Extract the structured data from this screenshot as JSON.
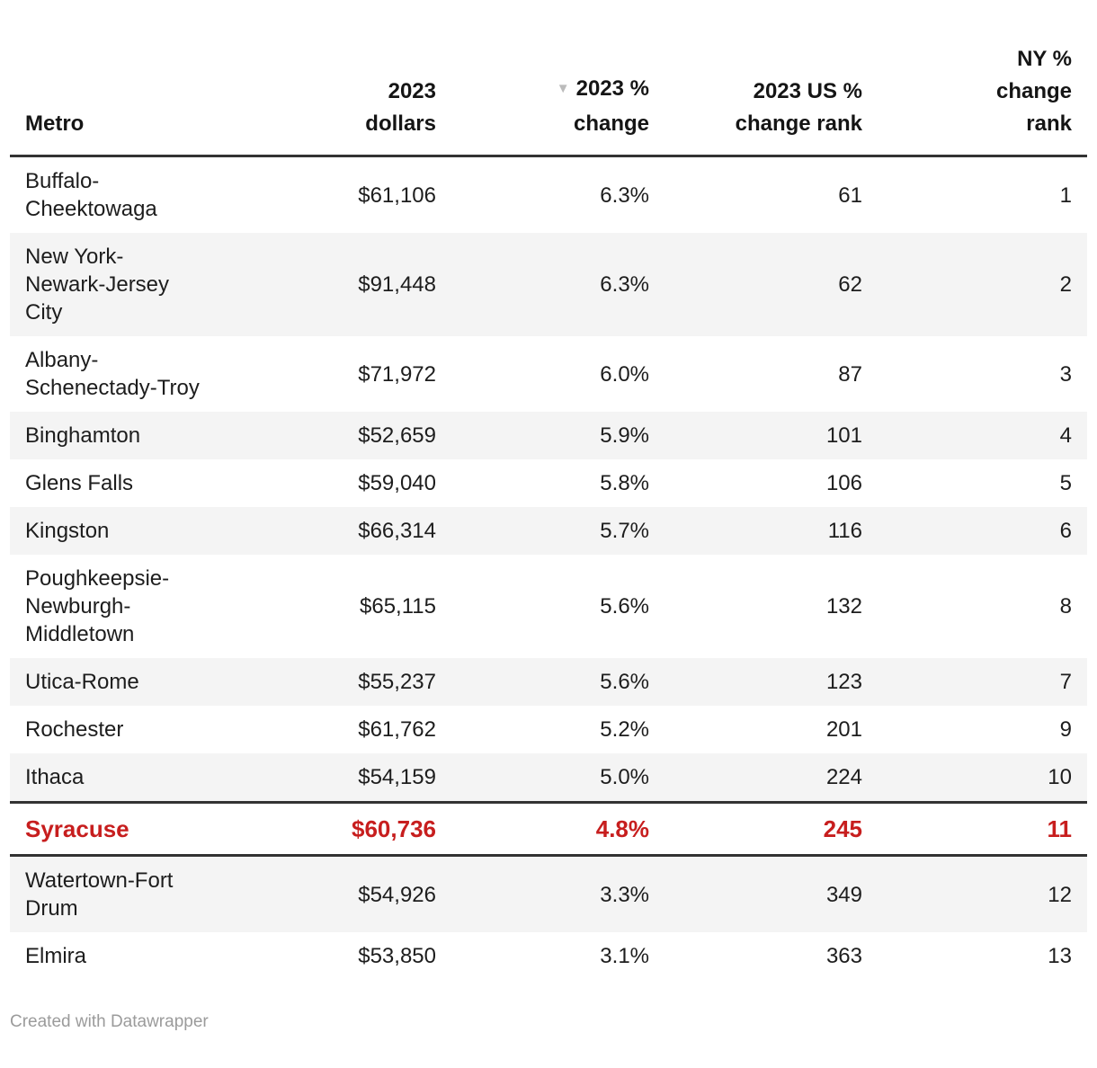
{
  "colors": {
    "highlight": "#c71e1e",
    "stripe": "#f4f4f4",
    "rule": "#333333",
    "arrow": "#bbbbbb",
    "footer_text": "#9b9b9b"
  },
  "table": {
    "sort_icon": "▼",
    "headers": {
      "metro": "Metro",
      "dollars": "2023\ndollars",
      "pct_change": "2023 %\nchange",
      "us_rank": "2023 US %\nchange rank",
      "ny_rank": "NY %\nchange\nrank"
    },
    "rows": [
      {
        "metro": "Buffalo-\nCheektowaga",
        "dollars": "$61,106",
        "pct": "6.3%",
        "us_rank": "61",
        "ny_rank": "1"
      },
      {
        "metro": "New York-\nNewark-Jersey\nCity",
        "dollars": "$91,448",
        "pct": "6.3%",
        "us_rank": "62",
        "ny_rank": "2"
      },
      {
        "metro": "Albany-\nSchenectady-Troy",
        "dollars": "$71,972",
        "pct": "6.0%",
        "us_rank": "87",
        "ny_rank": "3"
      },
      {
        "metro": "Binghamton",
        "dollars": "$52,659",
        "pct": "5.9%",
        "us_rank": "101",
        "ny_rank": "4"
      },
      {
        "metro": "Glens Falls",
        "dollars": "$59,040",
        "pct": "5.8%",
        "us_rank": "106",
        "ny_rank": "5"
      },
      {
        "metro": "Kingston",
        "dollars": "$66,314",
        "pct": "5.7%",
        "us_rank": "116",
        "ny_rank": "6"
      },
      {
        "metro": "Poughkeepsie-\nNewburgh-\nMiddletown",
        "dollars": "$65,115",
        "pct": "5.6%",
        "us_rank": "132",
        "ny_rank": "8"
      },
      {
        "metro": "Utica-Rome",
        "dollars": "$55,237",
        "pct": "5.6%",
        "us_rank": "123",
        "ny_rank": "7"
      },
      {
        "metro": "Rochester",
        "dollars": "$61,762",
        "pct": "5.2%",
        "us_rank": "201",
        "ny_rank": "9"
      },
      {
        "metro": "Ithaca",
        "dollars": "$54,159",
        "pct": "5.0%",
        "us_rank": "224",
        "ny_rank": "10"
      },
      {
        "metro": "Syracuse",
        "dollars": "$60,736",
        "pct": "4.8%",
        "us_rank": "245",
        "ny_rank": "11"
      },
      {
        "metro": "Watertown-Fort\nDrum",
        "dollars": "$54,926",
        "pct": "3.3%",
        "us_rank": "349",
        "ny_rank": "12"
      },
      {
        "metro": "Elmira",
        "dollars": "$53,850",
        "pct": "3.1%",
        "us_rank": "363",
        "ny_rank": "13"
      }
    ]
  },
  "footer": {
    "attribution": "Created with Datawrapper"
  },
  "chart_data": {
    "type": "table",
    "columns": [
      "Metro",
      "2023 dollars",
      "2023 % change",
      "2023 US % change rank",
      "NY % change rank"
    ],
    "rows": [
      [
        "Buffalo-Cheektowaga",
        61106,
        6.3,
        61,
        1
      ],
      [
        "New York-Newark-Jersey City",
        91448,
        6.3,
        62,
        2
      ],
      [
        "Albany-Schenectady-Troy",
        71972,
        6.0,
        87,
        3
      ],
      [
        "Binghamton",
        52659,
        5.9,
        101,
        4
      ],
      [
        "Glens Falls",
        59040,
        5.8,
        106,
        5
      ],
      [
        "Kingston",
        66314,
        5.7,
        116,
        6
      ],
      [
        "Poughkeepsie-Newburgh-Middletown",
        65115,
        5.6,
        132,
        8
      ],
      [
        "Utica-Rome",
        55237,
        5.6,
        123,
        7
      ],
      [
        "Rochester",
        61762,
        5.2,
        201,
        9
      ],
      [
        "Ithaca",
        54159,
        5.0,
        224,
        10
      ],
      [
        "Syracuse",
        60736,
        4.8,
        245,
        11
      ],
      [
        "Watertown-Fort Drum",
        54926,
        3.3,
        349,
        12
      ],
      [
        "Elmira",
        53850,
        3.1,
        363,
        13
      ]
    ],
    "sorted_by": "2023 % change",
    "sort_order": "descending",
    "highlighted_row": "Syracuse",
    "zebra_striping": true,
    "attribution": "Created with Datawrapper"
  }
}
